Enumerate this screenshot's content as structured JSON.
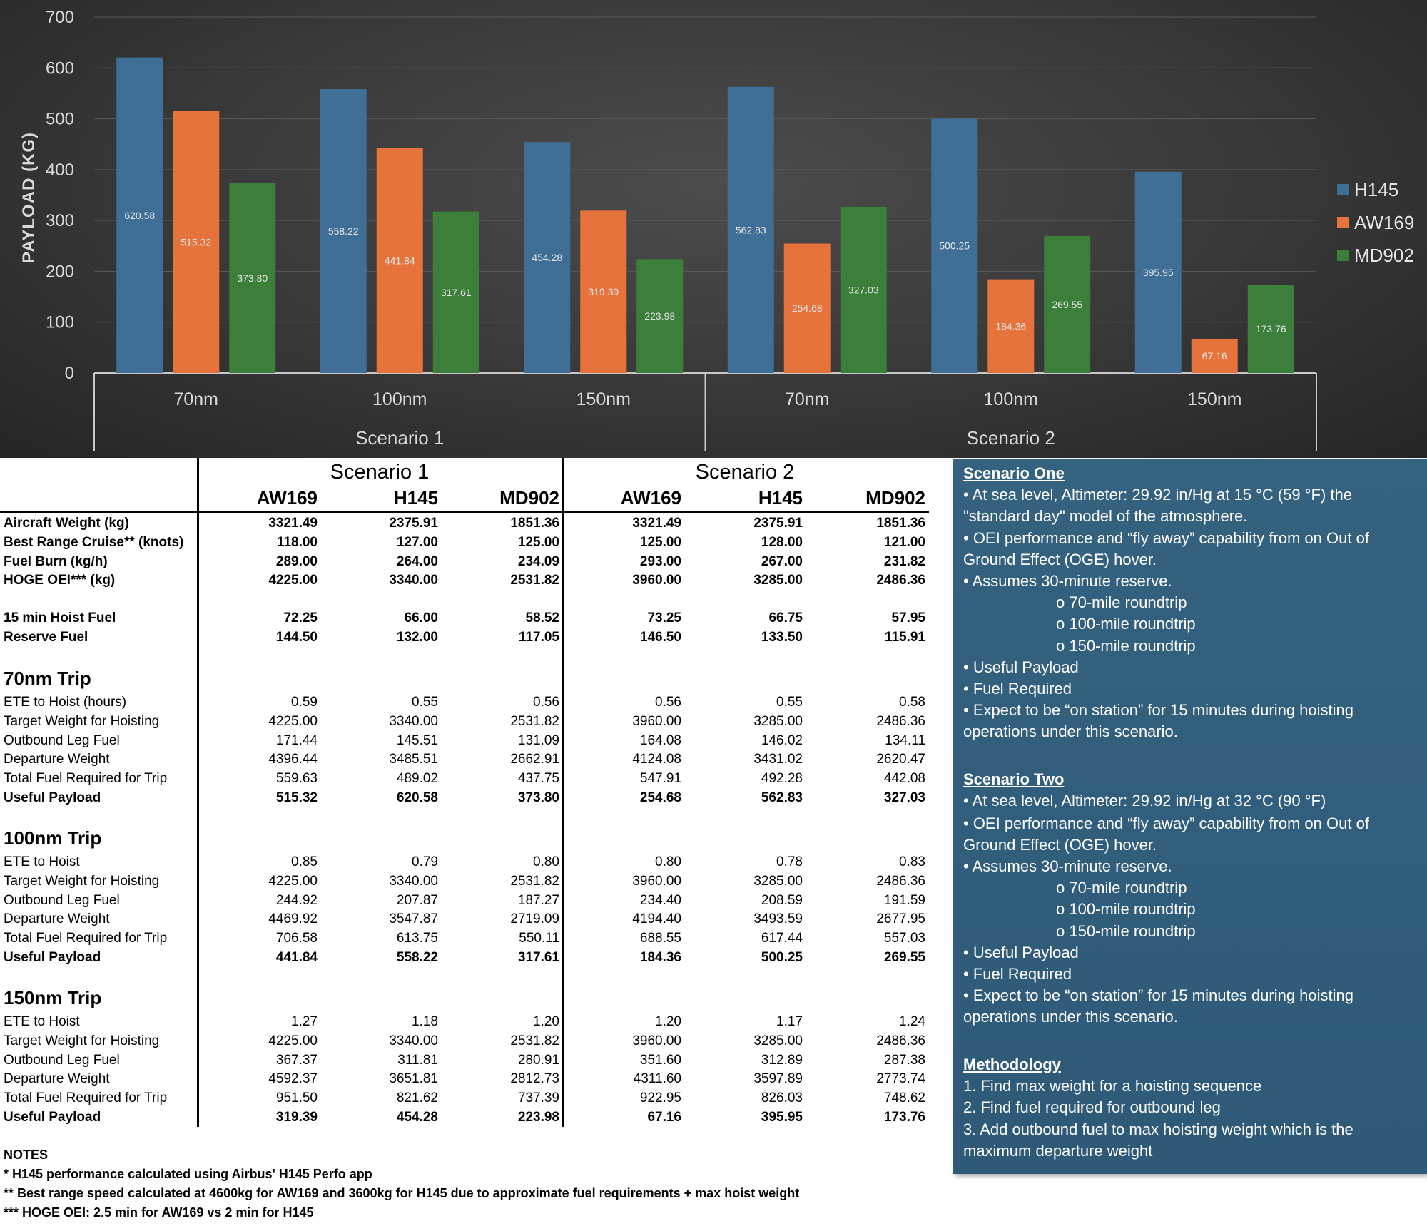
{
  "chart_data": {
    "type": "bar",
    "title": "",
    "ylabel": "PAYLOAD (KG)",
    "xlabel": "",
    "ylim": [
      0,
      700
    ],
    "yticks": [
      0,
      100,
      200,
      300,
      400,
      500,
      600,
      700
    ],
    "grid": true,
    "legend_position": "right",
    "groups": [
      "Scenario 1",
      "Scenario 2"
    ],
    "categories": [
      "70nm",
      "100nm",
      "150nm",
      "70nm",
      "100nm",
      "150nm"
    ],
    "category_group": [
      0,
      0,
      0,
      1,
      1,
      1
    ],
    "series": [
      {
        "name": "H145",
        "color": "#3f6e96",
        "values": [
          620.58,
          558.22,
          454.28,
          562.83,
          500.25,
          395.95
        ]
      },
      {
        "name": "AW169",
        "color": "#e5733b",
        "values": [
          515.32,
          441.84,
          319.39,
          254.68,
          184.36,
          67.16
        ]
      },
      {
        "name": "MD902",
        "color": "#3c7f3a",
        "values": [
          373.8,
          317.61,
          223.98,
          327.03,
          269.55,
          173.76
        ]
      }
    ],
    "labels": [
      [
        "620.58",
        "558.22",
        "454.28",
        "562.83",
        "500.25",
        "395.95"
      ],
      [
        "515.32",
        "441.84",
        "319.39",
        "254.68",
        "184.36",
        "67.16"
      ],
      [
        "373.80",
        "317.61",
        "223.98",
        "327.03",
        "269.55",
        "173.76"
      ]
    ]
  },
  "table": {
    "scenario1": "Scenario 1",
    "scenario2": "Scenario 2",
    "columns": [
      "AW169",
      "H145",
      "MD902",
      "AW169",
      "H145",
      "MD902"
    ],
    "general": [
      {
        "label": "Aircraft Weight (kg)",
        "bold": true,
        "values": [
          "3321.49",
          "2375.91",
          "1851.36",
          "3321.49",
          "2375.91",
          "1851.36"
        ]
      },
      {
        "label": "Best Range Cruise** (knots)",
        "bold": true,
        "values": [
          "118.00",
          "127.00",
          "125.00",
          "125.00",
          "128.00",
          "121.00"
        ]
      },
      {
        "label": "Fuel Burn (kg/h)",
        "bold": true,
        "values": [
          "289.00",
          "264.00",
          "234.09",
          "293.00",
          "267.00",
          "231.82"
        ]
      },
      {
        "label": "HOGE OEI*** (kg)",
        "bold": true,
        "values": [
          "4225.00",
          "3340.00",
          "2531.82",
          "3960.00",
          "3285.00",
          "2486.36"
        ]
      }
    ],
    "fuel": [
      {
        "label": "15 min Hoist Fuel",
        "bold": true,
        "values": [
          "72.25",
          "66.00",
          "58.52",
          "73.25",
          "66.75",
          "57.95"
        ]
      },
      {
        "label": "Reserve Fuel",
        "bold": true,
        "values": [
          "144.50",
          "132.00",
          "117.05",
          "146.50",
          "133.50",
          "115.91"
        ]
      }
    ],
    "trips": [
      {
        "title": "70nm Trip",
        "rows": [
          {
            "label": "ETE to Hoist (hours)",
            "bold": false,
            "values": [
              "0.59",
              "0.55",
              "0.56",
              "0.56",
              "0.55",
              "0.58"
            ]
          },
          {
            "label": "Target Weight for Hoisting",
            "bold": false,
            "values": [
              "4225.00",
              "3340.00",
              "2531.82",
              "3960.00",
              "3285.00",
              "2486.36"
            ]
          },
          {
            "label": "Outbound Leg Fuel",
            "bold": false,
            "values": [
              "171.44",
              "145.51",
              "131.09",
              "164.08",
              "146.02",
              "134.11"
            ]
          },
          {
            "label": "Departure Weight",
            "bold": false,
            "values": [
              "4396.44",
              "3485.51",
              "2662.91",
              "4124.08",
              "3431.02",
              "2620.47"
            ]
          },
          {
            "label": "Total Fuel Required for Trip",
            "bold": false,
            "values": [
              "559.63",
              "489.02",
              "437.75",
              "547.91",
              "492.28",
              "442.08"
            ]
          },
          {
            "label": "Useful Payload",
            "bold": true,
            "values": [
              "515.32",
              "620.58",
              "373.80",
              "254.68",
              "562.83",
              "327.03"
            ]
          }
        ]
      },
      {
        "title": "100nm Trip",
        "rows": [
          {
            "label": "ETE to Hoist",
            "bold": false,
            "values": [
              "0.85",
              "0.79",
              "0.80",
              "0.80",
              "0.78",
              "0.83"
            ]
          },
          {
            "label": "Target Weight for Hoisting",
            "bold": false,
            "values": [
              "4225.00",
              "3340.00",
              "2531.82",
              "3960.00",
              "3285.00",
              "2486.36"
            ]
          },
          {
            "label": "Outbound Leg Fuel",
            "bold": false,
            "values": [
              "244.92",
              "207.87",
              "187.27",
              "234.40",
              "208.59",
              "191.59"
            ]
          },
          {
            "label": "Departure Weight",
            "bold": false,
            "values": [
              "4469.92",
              "3547.87",
              "2719.09",
              "4194.40",
              "3493.59",
              "2677.95"
            ]
          },
          {
            "label": "Total Fuel Required for Trip",
            "bold": false,
            "values": [
              "706.58",
              "613.75",
              "550.11",
              "688.55",
              "617.44",
              "557.03"
            ]
          },
          {
            "label": "Useful Payload",
            "bold": true,
            "values": [
              "441.84",
              "558.22",
              "317.61",
              "184.36",
              "500.25",
              "269.55"
            ]
          }
        ]
      },
      {
        "title": "150nm Trip",
        "rows": [
          {
            "label": "ETE to Hoist",
            "bold": false,
            "values": [
              "1.27",
              "1.18",
              "1.20",
              "1.20",
              "1.17",
              "1.24"
            ]
          },
          {
            "label": "Target Weight for Hoisting",
            "bold": false,
            "values": [
              "4225.00",
              "3340.00",
              "2531.82",
              "3960.00",
              "3285.00",
              "2486.36"
            ]
          },
          {
            "label": "Outbound Leg Fuel",
            "bold": false,
            "values": [
              "367.37",
              "311.81",
              "280.91",
              "351.60",
              "312.89",
              "287.38"
            ]
          },
          {
            "label": "Departure Weight",
            "bold": false,
            "values": [
              "4592.37",
              "3651.81",
              "2812.73",
              "4311.60",
              "3597.89",
              "2773.74"
            ]
          },
          {
            "label": "Total Fuel Required for Trip",
            "bold": false,
            "values": [
              "951.50",
              "821.62",
              "737.39",
              "922.95",
              "826.03",
              "748.62"
            ]
          },
          {
            "label": "Useful Payload",
            "bold": true,
            "values": [
              "319.39",
              "454.28",
              "223.98",
              "67.16",
              "395.95",
              "173.76"
            ]
          }
        ]
      }
    ]
  },
  "notes": {
    "title": "NOTES",
    "lines": [
      "* H145 performance calculated using Airbus' H145 Perfo app",
      "** Best range speed calculated at 4600kg for AW169 and 3600kg for H145 due to approximate fuel requirements + max hoist weight",
      "*** HOGE OEI: 2.5 min for AW169 vs 2 min for H145"
    ]
  },
  "panel": {
    "scenario_one": {
      "heading": "Scenario One",
      "b1a": "• At sea level, Altimeter: 29.92 in/Hg at 15 °C (59 °F) the",
      "b1b": "\"standard day\" model of the atmosphere.",
      "b2a": "• OEI performance and “fly away” capability from on Out of",
      "b2b": "Ground Effect (OGE) hover.",
      "b3": "• Assumes 30-minute reserve.",
      "s1": "o 70-mile roundtrip",
      "s2": "o 100-mile roundtrip",
      "s3": "o 150-mile roundtrip",
      "b4": "• Useful Payload",
      "b5": "• Fuel Required",
      "b6a": "• Expect to be “on station” for 15 minutes during hoisting",
      "b6b": "operations under this scenario."
    },
    "scenario_two": {
      "heading": "Scenario Two",
      "b1a": "• At sea level, Altimeter: 29.92 in/Hg at 32 °C (90 °F)",
      "b2a": "• OEI performance and “fly away” capability from on Out of",
      "b2b": "Ground Effect (OGE) hover.",
      "b3": "• Assumes 30-minute reserve.",
      "s1": "o 70-mile roundtrip",
      "s2": "o 100-mile roundtrip",
      "s3": "o 150-mile roundtrip",
      "b4": "• Useful Payload",
      "b5": "• Fuel Required",
      "b6a": "• Expect to be “on station” for 15 minutes during hoisting",
      "b6b": "operations under this scenario."
    },
    "methodology": {
      "heading": "Methodology",
      "m1": "1. Find max weight for a hoisting sequence",
      "m2": "2. Find fuel required for outbound leg",
      "m3a": "3. Add outbound fuel to max hoisting weight which is the",
      "m3b": "maximum departure weight"
    }
  }
}
